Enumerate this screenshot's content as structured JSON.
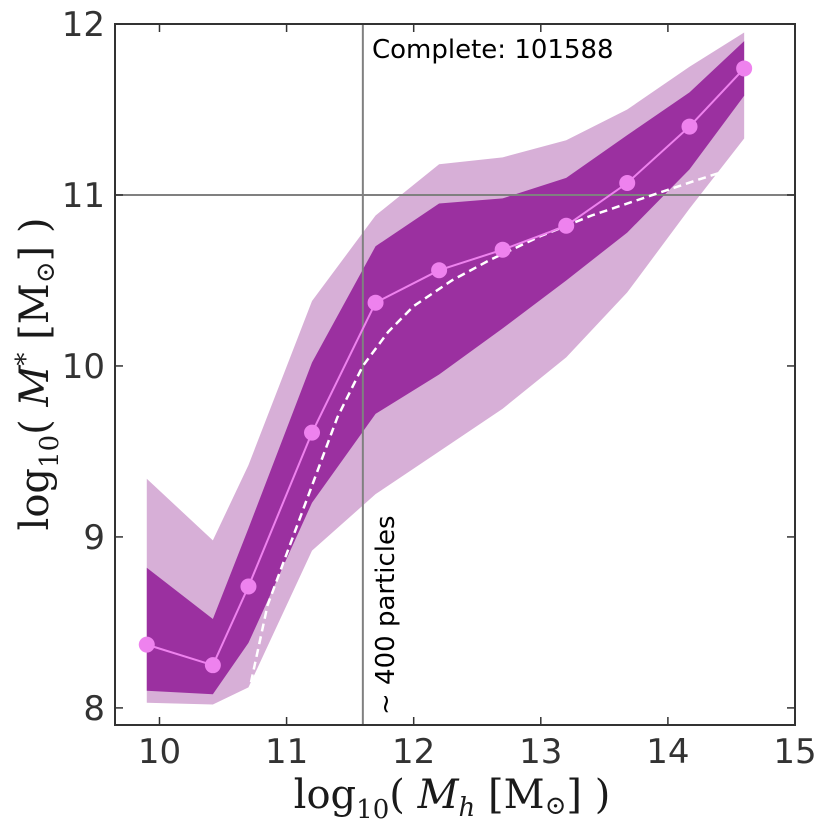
{
  "chart_data": {
    "type": "line",
    "title": "",
    "xlabel": "log10( M_h [M⊙] )",
    "ylabel": "log10( M_* [M⊙] )",
    "xlabel_parts": {
      "func": "log",
      "sub": "10",
      "open": "( ",
      "var": "M",
      "var_sub": "h",
      "unit": " [M",
      "sun": "⊙",
      "close": "] )"
    },
    "ylabel_parts": {
      "func": "log",
      "sub": "10",
      "open": "( ",
      "var": "M",
      "var_sub": "*",
      "unit": " [M",
      "sun": "⊙",
      "close": "] )"
    },
    "xlim": [
      9.65,
      15.0
    ],
    "ylim": [
      7.9,
      12.0
    ],
    "xticks": [
      10,
      11,
      12,
      13,
      14,
      15
    ],
    "yticks": [
      8,
      9,
      10,
      11,
      12
    ],
    "grid": false,
    "reference_lines": {
      "vertical_x": 11.6,
      "horizontal_y": 11.0
    },
    "annotations": {
      "complete": "Complete: 101588",
      "particles": "~ 400 particles"
    },
    "x": [
      9.9,
      10.42,
      10.7,
      11.2,
      11.7,
      12.2,
      12.7,
      13.2,
      13.68,
      14.17,
      14.6
    ],
    "series": [
      {
        "name": "median",
        "color": "#ee82ee",
        "values": [
          8.37,
          8.25,
          8.71,
          9.61,
          10.37,
          10.56,
          10.68,
          10.82,
          11.07,
          11.4,
          11.74
        ]
      },
      {
        "name": "inner_band_upper",
        "color": "#9b30a0",
        "values": [
          8.82,
          8.52,
          9.05,
          10.02,
          10.7,
          10.95,
          10.98,
          11.1,
          11.35,
          11.6,
          11.9
        ]
      },
      {
        "name": "inner_band_lower",
        "color": "#9b30a0",
        "values": [
          8.1,
          8.08,
          8.38,
          9.2,
          9.72,
          9.95,
          10.22,
          10.5,
          10.78,
          11.15,
          11.58
        ]
      },
      {
        "name": "outer_band_upper",
        "color": "#d7afd7",
        "values": [
          9.34,
          8.98,
          9.42,
          10.38,
          10.88,
          11.18,
          11.22,
          11.32,
          11.5,
          11.75,
          11.95
        ]
      },
      {
        "name": "outer_band_lower",
        "color": "#d7afd7",
        "values": [
          8.03,
          8.02,
          8.12,
          8.92,
          9.25,
          9.5,
          9.75,
          10.05,
          10.43,
          10.92,
          11.33
        ]
      },
      {
        "name": "dashed_relation",
        "color": "#ffffff",
        "x": [
          10.72,
          10.85,
          11.0,
          11.2,
          11.4,
          11.6,
          11.8,
          12.0,
          12.3,
          12.6,
          13.0,
          13.4,
          13.8,
          14.2,
          14.45
        ],
        "values": [
          8.15,
          8.6,
          8.9,
          9.3,
          9.7,
          10.0,
          10.2,
          10.35,
          10.5,
          10.62,
          10.76,
          10.88,
          10.98,
          11.08,
          11.14
        ]
      }
    ]
  }
}
